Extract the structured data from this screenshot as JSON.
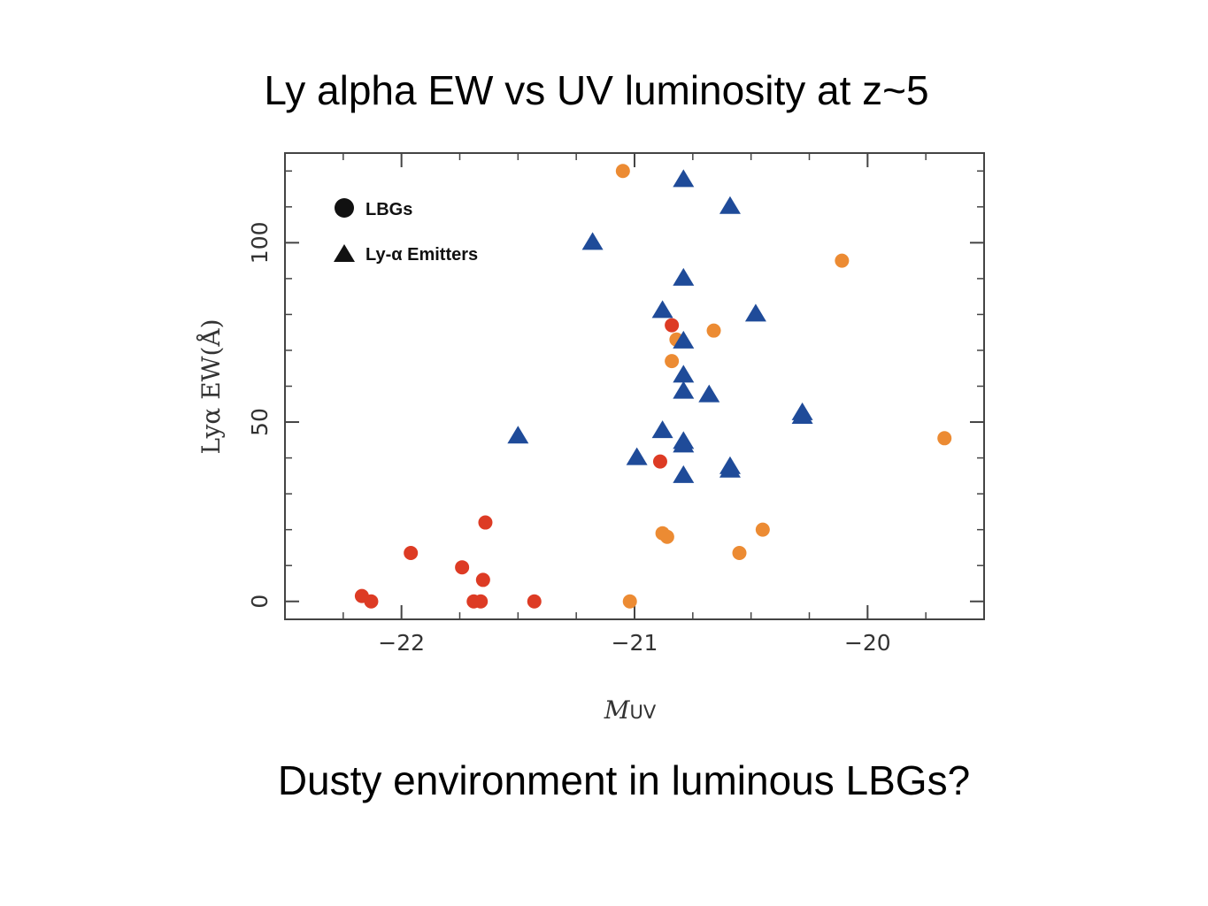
{
  "slide": {
    "title": "Ly alpha EW vs  UV luminosity at z~5",
    "subtitle": "Dusty environment in luminous LBGs?"
  },
  "colors": {
    "lbg_red": "#dd3b24",
    "lbg_orange": "#ec8b33",
    "lae_blue": "#1f4b99",
    "axis": "#444444"
  },
  "chart_data": {
    "type": "scatter",
    "xlabel_main": "M",
    "xlabel_sub": "UV",
    "ylabel": "Lyα  EW(Å)",
    "xlim": [
      -22.5,
      -19.5
    ],
    "ylim": [
      -5,
      125
    ],
    "xticks": [
      -22,
      -21,
      -20
    ],
    "xtick_labels": [
      "−22",
      "−21",
      "−20"
    ],
    "yticks": [
      0,
      50,
      100
    ],
    "ytick_labels": [
      "0",
      "50",
      "100"
    ],
    "grid": false,
    "legend_position": "top-left",
    "legend": [
      {
        "name": "LBGs",
        "marker": "circle"
      },
      {
        "name": "Ly-α Emitters",
        "marker": "triangle"
      }
    ],
    "series": [
      {
        "name": "LBGs",
        "marker": "circle",
        "color": "#dd3b24",
        "points": [
          [
            -22.17,
            1.5
          ],
          [
            -22.13,
            0
          ],
          [
            -21.96,
            13.5
          ],
          [
            -21.74,
            9.5
          ],
          [
            -21.69,
            0
          ],
          [
            -21.66,
            0
          ],
          [
            -21.65,
            6
          ],
          [
            -21.64,
            22
          ],
          [
            -21.43,
            0
          ],
          [
            -20.89,
            39
          ],
          [
            -20.84,
            77
          ]
        ]
      },
      {
        "name": "LBGs",
        "marker": "circle",
        "color": "#ec8b33",
        "points": [
          [
            -21.05,
            120
          ],
          [
            -21.02,
            0
          ],
          [
            -20.88,
            19
          ],
          [
            -20.86,
            18
          ],
          [
            -20.84,
            67
          ],
          [
            -20.82,
            73
          ],
          [
            -20.66,
            75.5
          ],
          [
            -20.55,
            13.5
          ],
          [
            -20.45,
            20
          ],
          [
            -20.11,
            95
          ],
          [
            -19.67,
            45.5
          ]
        ]
      },
      {
        "name": "Ly-α Emitters",
        "marker": "triangle",
        "color": "#1f4b99",
        "points": [
          [
            -21.5,
            46
          ],
          [
            -21.18,
            100
          ],
          [
            -20.99,
            40
          ],
          [
            -20.88,
            47.5
          ],
          [
            -20.88,
            81
          ],
          [
            -20.79,
            117.5
          ],
          [
            -20.79,
            90
          ],
          [
            -20.79,
            72.5
          ],
          [
            -20.79,
            63
          ],
          [
            -20.79,
            58.5
          ],
          [
            -20.79,
            44.5
          ],
          [
            -20.79,
            43.5
          ],
          [
            -20.79,
            35
          ],
          [
            -20.68,
            57.5
          ],
          [
            -20.59,
            110
          ],
          [
            -20.59,
            37.5
          ],
          [
            -20.59,
            36.5
          ],
          [
            -20.48,
            80
          ],
          [
            -20.28,
            52.5
          ],
          [
            -20.28,
            51.5
          ]
        ]
      }
    ]
  }
}
